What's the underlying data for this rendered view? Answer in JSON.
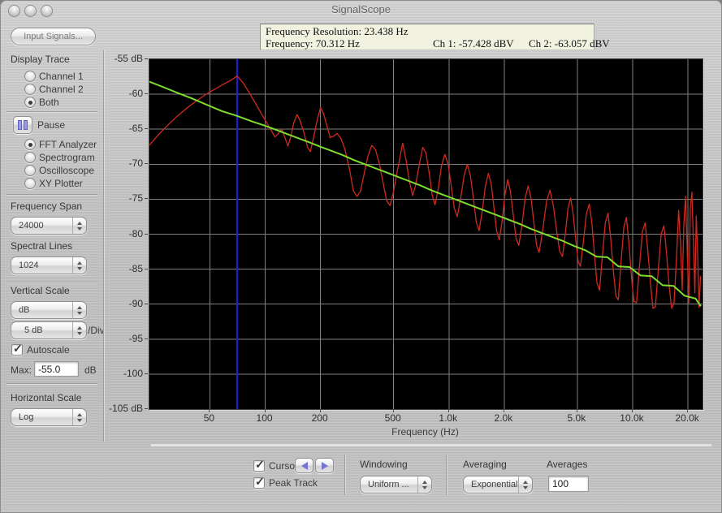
{
  "window": {
    "title": "SignalScope"
  },
  "sidebar": {
    "input_signals_button": "Input Signals...",
    "display_trace_label": "Display Trace",
    "display_trace_options": [
      {
        "label": "Channel 1",
        "selected": false
      },
      {
        "label": "Channel 2",
        "selected": false
      },
      {
        "label": "Both",
        "selected": true
      }
    ],
    "pause_label": "Pause",
    "instrument_options": [
      {
        "label": "FFT Analyzer",
        "selected": true
      },
      {
        "label": "Spectrogram",
        "selected": false
      },
      {
        "label": "Oscilloscope",
        "selected": false
      },
      {
        "label": "XY Plotter",
        "selected": false
      }
    ],
    "frequency_span_label": "Frequency Span",
    "frequency_span_value": "24000",
    "spectral_lines_label": "Spectral Lines",
    "spectral_lines_value": "1024",
    "vertical_scale_label": "Vertical Scale",
    "vertical_unit_value": "dB",
    "div_scale_value": "5 dB",
    "div_suffix": "/Div",
    "autoscale_label": "Autoscale",
    "autoscale_checked": true,
    "max_label": "Max:",
    "max_value": "-55.0",
    "max_unit": "dB",
    "horizontal_scale_label": "Horizontal Scale",
    "horizontal_scale_value": "Log"
  },
  "readout": {
    "frequency_resolution": "Frequency Resolution:  23.438 Hz",
    "frequency": "Frequency:  70.312 Hz",
    "ch1": "Ch 1:  -57.428 dBV",
    "ch2": "Ch 2:  -63.057 dBV"
  },
  "bottom": {
    "cursor_label": "Cursor",
    "cursor_checked": true,
    "peak_track_label": "Peak Track",
    "peak_track_checked": true,
    "windowing_label": "Windowing",
    "windowing_value": "Uniform ...",
    "averaging_label": "Averaging",
    "averaging_value": "Exponential",
    "averages_label": "Averages",
    "averages_value": "100"
  },
  "chart_data": {
    "type": "line",
    "xlabel": "Frequency (Hz)",
    "x_scale": "log",
    "x_range": [
      23.438,
      24000
    ],
    "y_range": [
      -105,
      -55
    ],
    "grid": true,
    "grid_color": "#7f7f7f",
    "background": "#000000",
    "cursor": {
      "hz": 70.312,
      "color": "#1e1ee0"
    },
    "x_ticks": [
      [
        50,
        "50"
      ],
      [
        100,
        "100"
      ],
      [
        200,
        "200"
      ],
      [
        500,
        "500"
      ],
      [
        1000,
        "1.0k"
      ],
      [
        2000,
        "2.0k"
      ],
      [
        5000,
        "5.0k"
      ],
      [
        10000,
        "10.0k"
      ],
      [
        20000,
        "20.0k"
      ]
    ],
    "y_ticks": [
      [
        -55,
        "-55 dB"
      ],
      [
        -60,
        "-60"
      ],
      [
        -65,
        "-65"
      ],
      [
        -70,
        "-70"
      ],
      [
        -75,
        "-75"
      ],
      [
        -80,
        "-80"
      ],
      [
        -85,
        "-85"
      ],
      [
        -90,
        "-90"
      ],
      [
        -95,
        "-95"
      ],
      [
        -100,
        "-100"
      ],
      [
        -105,
        "-105 dB"
      ]
    ],
    "series": [
      {
        "name": "Ch 1",
        "color": "#cf2a20",
        "width": 1.3,
        "points": [
          [
            23.4,
            -67.3
          ],
          [
            26,
            -65.9
          ],
          [
            29,
            -64.6
          ],
          [
            33,
            -63.2
          ],
          [
            37,
            -62.1
          ],
          [
            42,
            -61.0
          ],
          [
            47,
            -60.1
          ],
          [
            53,
            -59.3
          ],
          [
            59,
            -58.6
          ],
          [
            65,
            -58.0
          ],
          [
            70.3,
            -57.4
          ],
          [
            76,
            -58.4
          ],
          [
            82,
            -59.8
          ],
          [
            88,
            -61.2
          ],
          [
            95,
            -62.7
          ],
          [
            102,
            -64.1
          ],
          [
            108,
            -65.2
          ],
          [
            113,
            -66.1
          ],
          [
            118,
            -65.6
          ],
          [
            123,
            -65.0
          ],
          [
            128,
            -66.2
          ],
          [
            133,
            -67.4
          ],
          [
            138,
            -66.0
          ],
          [
            143,
            -64.1
          ],
          [
            149,
            -62.9
          ],
          [
            155,
            -63.8
          ],
          [
            163,
            -65.6
          ],
          [
            170,
            -67.6
          ],
          [
            176,
            -68.2
          ],
          [
            183,
            -66.3
          ],
          [
            191,
            -63.9
          ],
          [
            200,
            -61.9
          ],
          [
            208,
            -62.8
          ],
          [
            217,
            -64.6
          ],
          [
            226,
            -66.2
          ],
          [
            236,
            -66.0
          ],
          [
            246,
            -65.6
          ],
          [
            258,
            -66.3
          ],
          [
            272,
            -67.9
          ],
          [
            288,
            -70.8
          ],
          [
            302,
            -73.8
          ],
          [
            316,
            -74.6
          ],
          [
            330,
            -73.9
          ],
          [
            346,
            -71.3
          ],
          [
            362,
            -68.9
          ],
          [
            380,
            -67.3
          ],
          [
            398,
            -67.9
          ],
          [
            418,
            -69.9
          ],
          [
            438,
            -72.6
          ],
          [
            458,
            -75.2
          ],
          [
            478,
            -75.9
          ],
          [
            498,
            -74.1
          ],
          [
            518,
            -71.6
          ],
          [
            538,
            -69.4
          ],
          [
            560,
            -67.0
          ],
          [
            585,
            -69.5
          ],
          [
            610,
            -72.5
          ],
          [
            635,
            -74.5
          ],
          [
            660,
            -72.9
          ],
          [
            690,
            -70.0
          ],
          [
            720,
            -67.6
          ],
          [
            750,
            -68.4
          ],
          [
            780,
            -71.2
          ],
          [
            810,
            -74.4
          ],
          [
            840,
            -75.8
          ],
          [
            875,
            -73.5
          ],
          [
            910,
            -70.3
          ],
          [
            950,
            -68.6
          ],
          [
            990,
            -70.0
          ],
          [
            1030,
            -73.2
          ],
          [
            1070,
            -76.3
          ],
          [
            1110,
            -77.5
          ],
          [
            1160,
            -74.8
          ],
          [
            1210,
            -71.6
          ],
          [
            1260,
            -70.0
          ],
          [
            1310,
            -71.7
          ],
          [
            1360,
            -75.0
          ],
          [
            1410,
            -78.3
          ],
          [
            1460,
            -79.5
          ],
          [
            1520,
            -76.6
          ],
          [
            1580,
            -73.1
          ],
          [
            1640,
            -71.3
          ],
          [
            1700,
            -72.9
          ],
          [
            1760,
            -76.3
          ],
          [
            1820,
            -79.6
          ],
          [
            1880,
            -80.8
          ],
          [
            1950,
            -78.0
          ],
          [
            2020,
            -74.3
          ],
          [
            2090,
            -72.2
          ],
          [
            2160,
            -73.8
          ],
          [
            2240,
            -77.3
          ],
          [
            2320,
            -80.6
          ],
          [
            2400,
            -81.6
          ],
          [
            2500,
            -78.6
          ],
          [
            2600,
            -74.9
          ],
          [
            2700,
            -73.1
          ],
          [
            2800,
            -74.9
          ],
          [
            2900,
            -78.4
          ],
          [
            3000,
            -81.6
          ],
          [
            3100,
            -82.6
          ],
          [
            3250,
            -79.1
          ],
          [
            3400,
            -75.3
          ],
          [
            3550,
            -73.7
          ],
          [
            3700,
            -75.9
          ],
          [
            3850,
            -79.4
          ],
          [
            4000,
            -82.4
          ],
          [
            4150,
            -83.2
          ],
          [
            4300,
            -79.9
          ],
          [
            4450,
            -76.3
          ],
          [
            4600,
            -74.8
          ],
          [
            4750,
            -77.2
          ],
          [
            4900,
            -80.8
          ],
          [
            5050,
            -83.9
          ],
          [
            5200,
            -84.6
          ],
          [
            5400,
            -81.0
          ],
          [
            5600,
            -77.1
          ],
          [
            5800,
            -75.7
          ],
          [
            6000,
            -78.4
          ],
          [
            6200,
            -83.0
          ],
          [
            6400,
            -87.0
          ],
          [
            6600,
            -88.0
          ],
          [
            6850,
            -83.0
          ],
          [
            7100,
            -78.4
          ],
          [
            7350,
            -77.0
          ],
          [
            7600,
            -80.6
          ],
          [
            7850,
            -85.2
          ],
          [
            8100,
            -88.8
          ],
          [
            8350,
            -89.4
          ],
          [
            8650,
            -84.0
          ],
          [
            8950,
            -79.0
          ],
          [
            9250,
            -77.6
          ],
          [
            9550,
            -81.4
          ],
          [
            9850,
            -86.0
          ],
          [
            10150,
            -89.6
          ],
          [
            10500,
            -89.8
          ],
          [
            10900,
            -84.4
          ],
          [
            11300,
            -79.6
          ],
          [
            11700,
            -78.4
          ],
          [
            12100,
            -82.4
          ],
          [
            12500,
            -87.0
          ],
          [
            12900,
            -90.6
          ],
          [
            13300,
            -90.4
          ],
          [
            13800,
            -85.0
          ],
          [
            14300,
            -80.0
          ],
          [
            14800,
            -78.8
          ],
          [
            15300,
            -82.8
          ],
          [
            15800,
            -87.4
          ],
          [
            16300,
            -90.6
          ],
          [
            16800,
            -89.8
          ],
          [
            17400,
            -82.4
          ],
          [
            17800,
            -76.6
          ],
          [
            18200,
            -81.0
          ],
          [
            18600,
            -88.0
          ],
          [
            19000,
            -78.6
          ],
          [
            19400,
            -74.6
          ],
          [
            19800,
            -82.0
          ],
          [
            20200,
            -89.8
          ],
          [
            20600,
            -76.2
          ],
          [
            21000,
            -74.0
          ],
          [
            21400,
            -80.6
          ],
          [
            21800,
            -88.4
          ],
          [
            22200,
            -77.4
          ],
          [
            22600,
            -83.0
          ],
          [
            23000,
            -90.5
          ],
          [
            23400,
            -86.0
          ]
        ]
      },
      {
        "name": "Ch 2",
        "color": "#7edd2e",
        "width": 2,
        "points": [
          [
            23.4,
            -58.2
          ],
          [
            28,
            -59.0
          ],
          [
            34,
            -59.9
          ],
          [
            40,
            -60.6
          ],
          [
            48,
            -61.5
          ],
          [
            58,
            -62.4
          ],
          [
            70.3,
            -63.1
          ],
          [
            85,
            -63.9
          ],
          [
            100,
            -64.5
          ],
          [
            115,
            -65.1
          ],
          [
            132,
            -65.7
          ],
          [
            152,
            -66.3
          ],
          [
            175,
            -66.9
          ],
          [
            200,
            -67.5
          ],
          [
            230,
            -68.1
          ],
          [
            264,
            -68.7
          ],
          [
            303,
            -69.4
          ],
          [
            348,
            -70.0
          ],
          [
            400,
            -70.6
          ],
          [
            459,
            -71.2
          ],
          [
            527,
            -71.8
          ],
          [
            605,
            -72.4
          ],
          [
            695,
            -73.0
          ],
          [
            798,
            -73.7
          ],
          [
            916,
            -74.3
          ],
          [
            1052,
            -74.9
          ],
          [
            1208,
            -75.5
          ],
          [
            1387,
            -76.1
          ],
          [
            1593,
            -76.7
          ],
          [
            1829,
            -77.3
          ],
          [
            2100,
            -77.9
          ],
          [
            2411,
            -78.5
          ],
          [
            2769,
            -79.2
          ],
          [
            3179,
            -79.8
          ],
          [
            3651,
            -80.4
          ],
          [
            4192,
            -81.0
          ],
          [
            4814,
            -81.7
          ],
          [
            5528,
            -82.3
          ],
          [
            6348,
            -83.2
          ],
          [
            7289,
            -83.3
          ],
          [
            8370,
            -84.6
          ],
          [
            9611,
            -84.7
          ],
          [
            11036,
            -85.9
          ],
          [
            12673,
            -86.0
          ],
          [
            14552,
            -87.3
          ],
          [
            16710,
            -87.4
          ],
          [
            19188,
            -88.8
          ],
          [
            22000,
            -89.2
          ],
          [
            23500,
            -90.3
          ]
        ]
      }
    ]
  }
}
